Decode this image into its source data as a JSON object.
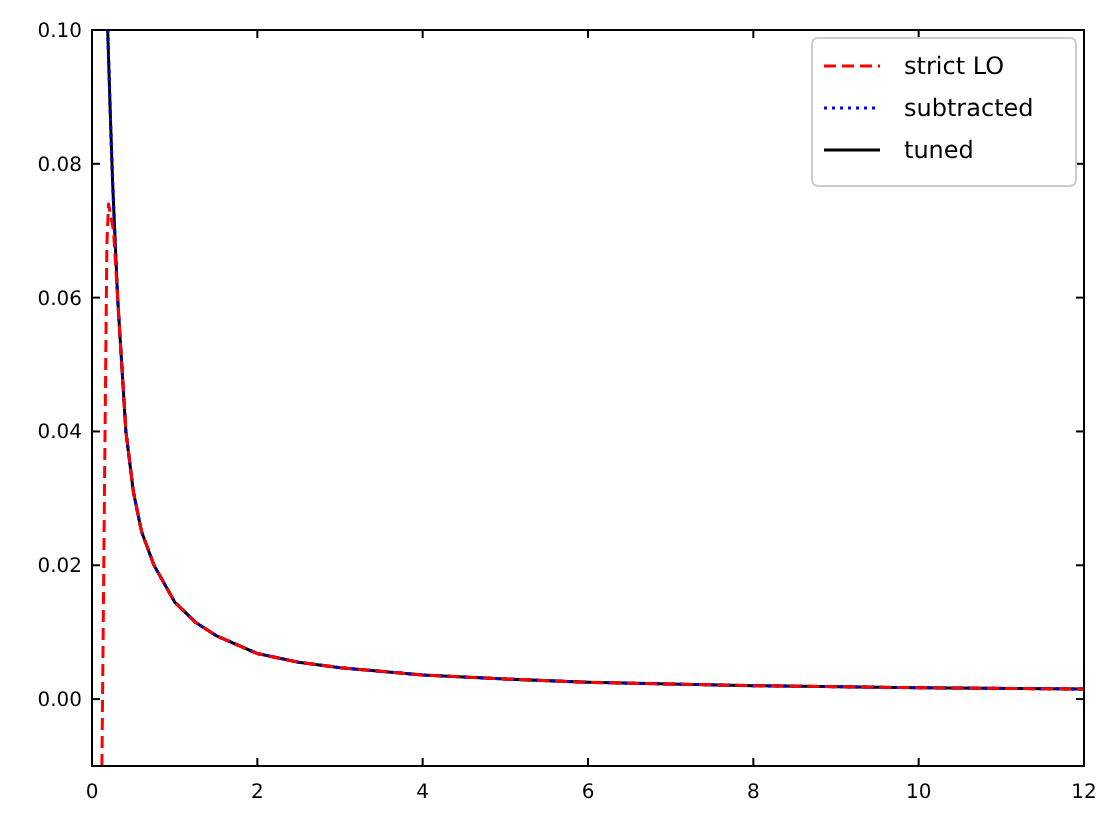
{
  "chart_data": {
    "type": "line",
    "xlim": [
      0,
      12
    ],
    "ylim": [
      -0.01,
      0.1
    ],
    "xticks": [
      0,
      2,
      4,
      6,
      8,
      10,
      12
    ],
    "yticks": [
      {
        "value": 0,
        "label": "0.00"
      },
      {
        "value": 0.02,
        "label": "0.02"
      },
      {
        "value": 0.04,
        "label": "0.04"
      },
      {
        "value": 0.06,
        "label": "0.06"
      },
      {
        "value": 0.08,
        "label": "0.08"
      },
      {
        "value": 0.1,
        "label": "0.10"
      }
    ],
    "grid": false,
    "legend": "top right",
    "series": [
      {
        "name": "strict LO",
        "color": "#ff0000",
        "line_style": "dashed",
        "x": [
          0.12,
          0.15,
          0.18,
          0.2,
          0.23,
          0.26,
          0.31,
          0.36,
          0.41,
          0.5,
          0.6,
          0.75,
          1,
          1.25,
          1.5,
          2,
          2.5,
          3,
          4,
          5,
          6,
          8,
          10,
          12
        ],
        "values": [
          -0.01,
          0.03,
          0.068,
          0.074,
          0.072,
          0.07,
          0.06,
          0.05,
          0.04,
          0.031,
          0.025,
          0.02,
          0.0145,
          0.0115,
          0.0095,
          0.0068,
          0.0055,
          0.0047,
          0.0036,
          0.003,
          0.0025,
          0.002,
          0.0017,
          0.0015
        ]
      },
      {
        "name": "subtracted",
        "color": "#0000ff",
        "line_style": "dotted",
        "x": [
          0.19,
          0.22,
          0.25,
          0.31,
          0.36,
          0.41,
          0.5,
          0.6,
          0.75,
          1,
          1.25,
          1.5,
          2,
          2.5,
          3,
          4,
          5,
          6,
          8,
          10,
          12
        ],
        "values": [
          0.1,
          0.088,
          0.077,
          0.06,
          0.05,
          0.04,
          0.031,
          0.025,
          0.02,
          0.0145,
          0.0115,
          0.0095,
          0.0068,
          0.0055,
          0.0047,
          0.0036,
          0.003,
          0.0025,
          0.002,
          0.0017,
          0.0015
        ]
      },
      {
        "name": "tuned",
        "color": "#000000",
        "line_style": "solid",
        "x": [
          0.19,
          0.22,
          0.25,
          0.31,
          0.36,
          0.41,
          0.5,
          0.6,
          0.75,
          1,
          1.25,
          1.5,
          2,
          2.5,
          3,
          4,
          5,
          6,
          8,
          10,
          12
        ],
        "values": [
          0.1,
          0.088,
          0.077,
          0.06,
          0.05,
          0.04,
          0.031,
          0.025,
          0.02,
          0.0145,
          0.0115,
          0.0095,
          0.0068,
          0.0055,
          0.0047,
          0.0036,
          0.003,
          0.0025,
          0.002,
          0.0017,
          0.0015
        ]
      }
    ]
  }
}
